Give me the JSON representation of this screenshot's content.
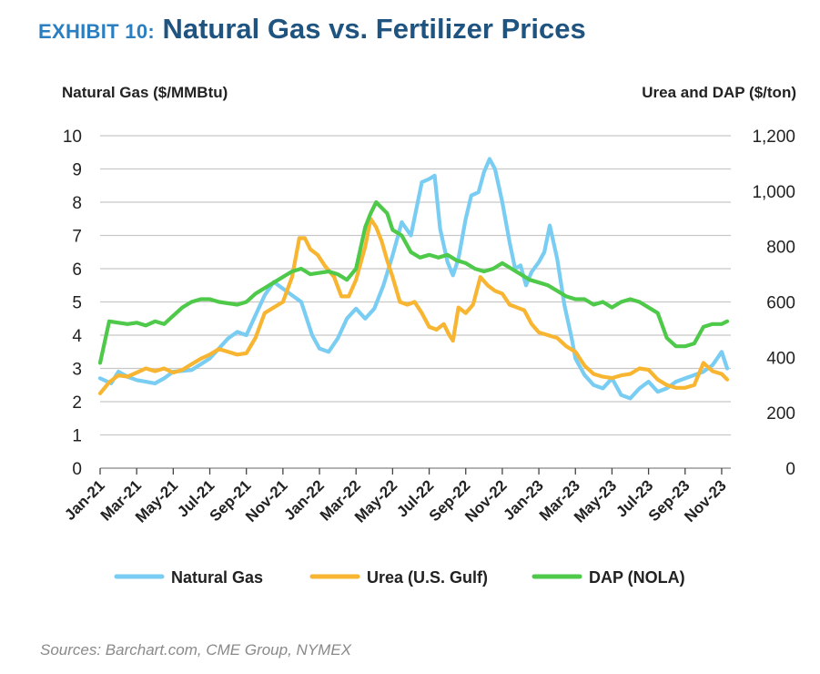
{
  "header": {
    "exhibit": "EXHIBIT 10:",
    "title": "Natural Gas vs. Fertilizer Prices"
  },
  "source": "Sources: Barchart.com, CME Group, NYMEX",
  "chart_data": {
    "type": "line",
    "left_axis_label": "Natural Gas ($/MMBtu)",
    "right_axis_label": "Urea and DAP ($/ton)",
    "left_ticks": [
      "0",
      "1",
      "2",
      "3",
      "4",
      "5",
      "6",
      "7",
      "8",
      "9",
      "10"
    ],
    "right_ticks": [
      "0",
      "200",
      "400",
      "600",
      "800",
      "1,000",
      "1,200"
    ],
    "ylim_left": [
      0,
      10
    ],
    "ylim_right": [
      0,
      1200
    ],
    "x_tick_labels": [
      "Jan-21",
      "Mar-21",
      "May-21",
      "Jul-21",
      "Sep-21",
      "Nov-21",
      "Jan-22",
      "Mar-22",
      "May-22",
      "Jul-22",
      "Sep-22",
      "Nov-22",
      "Jan-23",
      "Mar-23",
      "May-23",
      "Jul-23",
      "Sep-23",
      "Nov-23"
    ],
    "x_unit": "months since Jan-21",
    "xlim": [
      0,
      34.5
    ],
    "grid": "horizontal",
    "legend_position": "bottom",
    "colors": {
      "natural_gas": "#79cdf2",
      "urea": "#f7b531",
      "dap": "#4ec949",
      "grid": "#c8c8c8",
      "text": "#222222"
    },
    "series": [
      {
        "name": "Natural Gas",
        "axis": "left",
        "color": "#79cdf2",
        "points": [
          [
            0,
            2.7
          ],
          [
            0.6,
            2.55
          ],
          [
            1,
            2.9
          ],
          [
            1.5,
            2.75
          ],
          [
            2,
            2.65
          ],
          [
            2.5,
            2.6
          ],
          [
            3,
            2.55
          ],
          [
            3.5,
            2.7
          ],
          [
            4,
            2.9
          ],
          [
            5,
            2.95
          ],
          [
            6,
            3.3
          ],
          [
            6.5,
            3.6
          ],
          [
            7,
            3.9
          ],
          [
            7.5,
            4.1
          ],
          [
            8,
            4.0
          ],
          [
            8.5,
            4.6
          ],
          [
            9,
            5.2
          ],
          [
            9.5,
            5.6
          ],
          [
            10,
            5.4
          ],
          [
            10.5,
            5.2
          ],
          [
            11,
            5.0
          ],
          [
            11.3,
            4.5
          ],
          [
            11.6,
            4.0
          ],
          [
            12,
            3.6
          ],
          [
            12.5,
            3.5
          ],
          [
            13,
            3.9
          ],
          [
            13.5,
            4.5
          ],
          [
            14,
            4.8
          ],
          [
            14.5,
            4.5
          ],
          [
            15,
            4.8
          ],
          [
            15.5,
            5.5
          ],
          [
            16,
            6.4
          ],
          [
            16.5,
            7.4
          ],
          [
            17,
            7.0
          ],
          [
            17.3,
            7.8
          ],
          [
            17.6,
            8.6
          ],
          [
            18,
            8.7
          ],
          [
            18.3,
            8.8
          ],
          [
            18.6,
            7.2
          ],
          [
            19,
            6.2
          ],
          [
            19.3,
            5.8
          ],
          [
            19.6,
            6.3
          ],
          [
            20,
            7.5
          ],
          [
            20.3,
            8.2
          ],
          [
            20.7,
            8.3
          ],
          [
            21,
            8.9
          ],
          [
            21.3,
            9.3
          ],
          [
            21.6,
            9.0
          ],
          [
            22,
            8.0
          ],
          [
            22.4,
            6.8
          ],
          [
            22.7,
            6.0
          ],
          [
            23,
            6.1
          ],
          [
            23.3,
            5.5
          ],
          [
            23.6,
            5.9
          ],
          [
            24,
            6.2
          ],
          [
            24.3,
            6.5
          ],
          [
            24.6,
            7.3
          ],
          [
            25,
            6.3
          ],
          [
            25.4,
            4.9
          ],
          [
            25.8,
            3.9
          ],
          [
            26,
            3.3
          ],
          [
            26.5,
            2.8
          ],
          [
            27,
            2.5
          ],
          [
            27.5,
            2.4
          ],
          [
            28,
            2.7
          ],
          [
            28.5,
            2.2
          ],
          [
            29,
            2.1
          ],
          [
            29.5,
            2.4
          ],
          [
            30,
            2.6
          ],
          [
            30.5,
            2.3
          ],
          [
            31,
            2.4
          ],
          [
            31.5,
            2.6
          ],
          [
            32,
            2.7
          ],
          [
            32.5,
            2.8
          ],
          [
            33,
            2.9
          ],
          [
            33.5,
            3.1
          ],
          [
            34,
            3.5
          ],
          [
            34.3,
            3.0
          ]
        ]
      },
      {
        "name": "Urea (U.S. Gulf)",
        "axis": "right",
        "color": "#f7b531",
        "points": [
          [
            0,
            270
          ],
          [
            0.5,
            310
          ],
          [
            1,
            335
          ],
          [
            1.5,
            330
          ],
          [
            2,
            345
          ],
          [
            2.5,
            360
          ],
          [
            3,
            350
          ],
          [
            3.5,
            360
          ],
          [
            4,
            345
          ],
          [
            4.5,
            355
          ],
          [
            5,
            375
          ],
          [
            5.5,
            395
          ],
          [
            6,
            410
          ],
          [
            6.5,
            430
          ],
          [
            7,
            420
          ],
          [
            7.5,
            410
          ],
          [
            8,
            415
          ],
          [
            8.5,
            470
          ],
          [
            9,
            560
          ],
          [
            9.5,
            580
          ],
          [
            10,
            600
          ],
          [
            10.5,
            690
          ],
          [
            10.9,
            830
          ],
          [
            11.2,
            830
          ],
          [
            11.5,
            790
          ],
          [
            11.9,
            770
          ],
          [
            12.3,
            730
          ],
          [
            12.8,
            690
          ],
          [
            13.2,
            620
          ],
          [
            13.6,
            620
          ],
          [
            14,
            680
          ],
          [
            14.5,
            800
          ],
          [
            14.8,
            900
          ],
          [
            15.1,
            870
          ],
          [
            15.4,
            820
          ],
          [
            15.7,
            750
          ],
          [
            16,
            690
          ],
          [
            16.4,
            600
          ],
          [
            16.8,
            590
          ],
          [
            17.2,
            600
          ],
          [
            17.6,
            560
          ],
          [
            18,
            510
          ],
          [
            18.4,
            500
          ],
          [
            18.8,
            520
          ],
          [
            19.1,
            480
          ],
          [
            19.3,
            460
          ],
          [
            19.6,
            580
          ],
          [
            20,
            560
          ],
          [
            20.4,
            590
          ],
          [
            20.8,
            690
          ],
          [
            21.2,
            660
          ],
          [
            21.6,
            640
          ],
          [
            22,
            630
          ],
          [
            22.4,
            590
          ],
          [
            22.8,
            580
          ],
          [
            23.2,
            570
          ],
          [
            23.6,
            520
          ],
          [
            24,
            490
          ],
          [
            24.5,
            480
          ],
          [
            25,
            470
          ],
          [
            25.5,
            440
          ],
          [
            26,
            420
          ],
          [
            26.5,
            370
          ],
          [
            27,
            340
          ],
          [
            27.5,
            330
          ],
          [
            28,
            325
          ],
          [
            28.5,
            335
          ],
          [
            29,
            340
          ],
          [
            29.5,
            360
          ],
          [
            30,
            355
          ],
          [
            30.5,
            320
          ],
          [
            31,
            300
          ],
          [
            31.5,
            290
          ],
          [
            32,
            290
          ],
          [
            32.5,
            300
          ],
          [
            33,
            380
          ],
          [
            33.5,
            350
          ],
          [
            34,
            340
          ],
          [
            34.3,
            320
          ]
        ]
      },
      {
        "name": "DAP (NOLA)",
        "axis": "right",
        "color": "#4ec949",
        "points": [
          [
            0,
            380
          ],
          [
            0.5,
            530
          ],
          [
            1,
            525
          ],
          [
            1.5,
            520
          ],
          [
            2,
            525
          ],
          [
            2.5,
            515
          ],
          [
            3,
            530
          ],
          [
            3.5,
            520
          ],
          [
            4,
            550
          ],
          [
            4.5,
            580
          ],
          [
            5,
            600
          ],
          [
            5.5,
            610
          ],
          [
            6,
            610
          ],
          [
            6.5,
            600
          ],
          [
            7,
            595
          ],
          [
            7.5,
            590
          ],
          [
            8,
            600
          ],
          [
            8.5,
            630
          ],
          [
            9,
            650
          ],
          [
            9.5,
            670
          ],
          [
            10,
            690
          ],
          [
            10.5,
            710
          ],
          [
            11,
            720
          ],
          [
            11.5,
            700
          ],
          [
            12,
            705
          ],
          [
            12.5,
            710
          ],
          [
            13,
            700
          ],
          [
            13.5,
            680
          ],
          [
            14,
            720
          ],
          [
            14.5,
            870
          ],
          [
            14.8,
            920
          ],
          [
            15.1,
            960
          ],
          [
            15.4,
            940
          ],
          [
            15.7,
            920
          ],
          [
            16,
            860
          ],
          [
            16.5,
            840
          ],
          [
            17,
            780
          ],
          [
            17.5,
            760
          ],
          [
            18,
            770
          ],
          [
            18.5,
            760
          ],
          [
            19,
            770
          ],
          [
            19.5,
            750
          ],
          [
            20,
            740
          ],
          [
            20.5,
            720
          ],
          [
            21,
            710
          ],
          [
            21.5,
            720
          ],
          [
            22,
            740
          ],
          [
            22.5,
            720
          ],
          [
            23,
            700
          ],
          [
            23.5,
            680
          ],
          [
            24,
            670
          ],
          [
            24.5,
            660
          ],
          [
            25,
            640
          ],
          [
            25.5,
            620
          ],
          [
            26,
            610
          ],
          [
            26.5,
            610
          ],
          [
            27,
            590
          ],
          [
            27.5,
            600
          ],
          [
            28,
            580
          ],
          [
            28.5,
            600
          ],
          [
            29,
            610
          ],
          [
            29.5,
            600
          ],
          [
            30,
            580
          ],
          [
            30.5,
            560
          ],
          [
            31,
            470
          ],
          [
            31.5,
            440
          ],
          [
            32,
            440
          ],
          [
            32.5,
            450
          ],
          [
            33,
            510
          ],
          [
            33.5,
            520
          ],
          [
            34,
            520
          ],
          [
            34.3,
            530
          ]
        ]
      }
    ]
  }
}
